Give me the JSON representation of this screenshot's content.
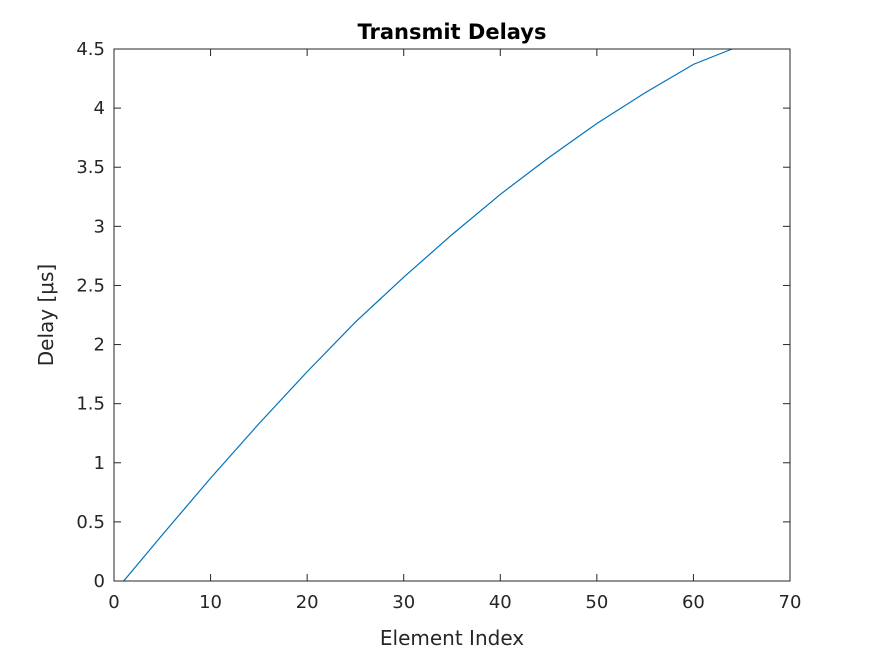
{
  "chart_data": {
    "type": "line",
    "title": "Transmit Delays",
    "xlabel": "Element Index",
    "ylabel": "Delay [μs]",
    "xlim": [
      0,
      70
    ],
    "ylim": [
      0,
      4.5
    ],
    "x_ticks": [
      "0",
      "10",
      "20",
      "30",
      "40",
      "50",
      "60",
      "70"
    ],
    "y_ticks": [
      "0",
      "0.5",
      "1",
      "1.5",
      "2",
      "2.5",
      "3",
      "3.5",
      "4",
      "4.5"
    ],
    "grid": false,
    "legend": "none",
    "colors": {
      "series": "#0072BD",
      "axes": "#262626"
    },
    "series": [
      {
        "x": [
          1,
          5,
          10,
          15,
          20,
          25,
          30,
          35,
          40,
          45,
          50,
          55,
          60,
          64
        ],
        "y": [
          0.0,
          0.39,
          0.87,
          1.33,
          1.77,
          2.19,
          2.57,
          2.93,
          3.27,
          3.58,
          3.87,
          4.13,
          4.37,
          4.5
        ]
      }
    ]
  }
}
